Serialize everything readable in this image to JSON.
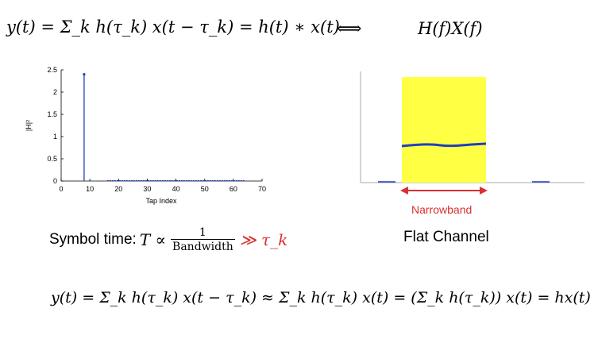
{
  "equations": {
    "top_left": "y(t) = Σ_k h(τ_k) x(t − τ_k) = h(t) ∗ x(t)",
    "equiv": "⟺",
    "top_right": "H(f)X(f)",
    "bottom": "y(t) = Σ_k h(τ_k) x(t − τ_k) ≈ Σ_k h(τ_k) x(t) = (Σ_k h(τ_k)) x(t) = hx(t)"
  },
  "symbol_time": {
    "prefix": "Symbol time: ",
    "fraction_num": "1",
    "fraction_den": "Bandwidth",
    "relation": "≫ τ_k"
  },
  "spectrum": {
    "band_label": "Narrowband",
    "caption": "Flat Channel"
  },
  "colors": {
    "band_fill": "#ffff44",
    "response_line": "#1f3fbf",
    "annotation_red": "#d93030"
  },
  "chart_data": {
    "type": "stem",
    "xlabel": "Tap Index",
    "ylabel": "|H|²",
    "xlim": [
      0,
      70
    ],
    "ylim": [
      0,
      2.5
    ],
    "xticks": [
      0,
      10,
      20,
      30,
      40,
      50,
      60,
      70
    ],
    "yticks": [
      0,
      0.5,
      1,
      1.5,
      2,
      2.5
    ],
    "series": [
      {
        "x": [
          8
        ],
        "y": [
          2.4
        ]
      },
      {
        "x_range": [
          16,
          64
        ],
        "y_value": 0.0
      }
    ]
  }
}
